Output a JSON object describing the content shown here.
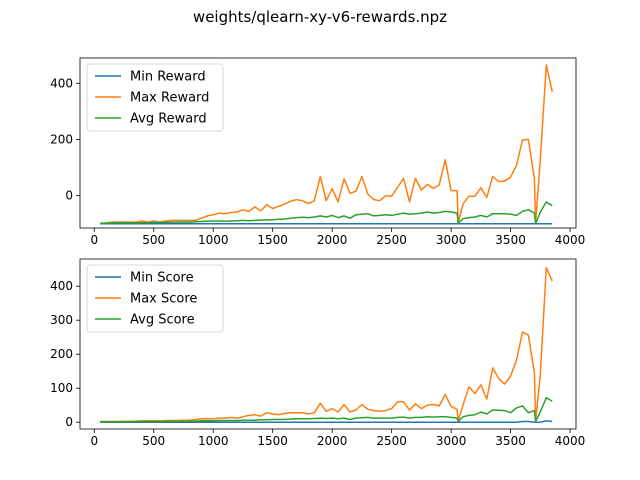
{
  "figure": {
    "suptitle": "weights/qlearn-xy-v6-rewards.npz"
  },
  "chart_data": [
    {
      "type": "line",
      "title": "",
      "xlabel": "",
      "ylabel": "",
      "xlim": [
        -120,
        4050
      ],
      "ylim": [
        -115,
        490
      ],
      "xticks": [
        0,
        500,
        1000,
        1500,
        2000,
        2500,
        3000,
        3500,
        4000
      ],
      "yticks": [
        0,
        200,
        400
      ],
      "grid": false,
      "legend": "top-left",
      "x": [
        50,
        100,
        150,
        200,
        250,
        300,
        350,
        400,
        450,
        500,
        550,
        600,
        650,
        700,
        750,
        800,
        850,
        900,
        950,
        1000,
        1050,
        1100,
        1150,
        1200,
        1250,
        1300,
        1350,
        1400,
        1450,
        1500,
        1550,
        1600,
        1650,
        1700,
        1750,
        1800,
        1850,
        1900,
        1950,
        2000,
        2050,
        2100,
        2150,
        2200,
        2250,
        2300,
        2350,
        2400,
        2450,
        2500,
        2550,
        2600,
        2650,
        2700,
        2750,
        2800,
        2850,
        2900,
        2950,
        3000,
        3050,
        3060,
        3100,
        3150,
        3200,
        3250,
        3300,
        3350,
        3400,
        3450,
        3500,
        3550,
        3600,
        3650,
        3700,
        3710,
        3750,
        3800,
        3850
      ],
      "series": [
        {
          "name": "Min Reward",
          "color": "#1f77b4",
          "values": [
            -100,
            -100,
            -100,
            -100,
            -100,
            -100,
            -100,
            -100,
            -100,
            -100,
            -100,
            -100,
            -100,
            -100,
            -100,
            -100,
            -100,
            -100,
            -100,
            -100,
            -100,
            -100,
            -100,
            -100,
            -100,
            -100,
            -100,
            -100,
            -100,
            -100,
            -100,
            -100,
            -100,
            -100,
            -100,
            -100,
            -100,
            -100,
            -100,
            -100,
            -100,
            -100,
            -100,
            -100,
            -100,
            -100,
            -100,
            -100,
            -100,
            -100,
            -100,
            -100,
            -100,
            -100,
            -100,
            -100,
            -100,
            -100,
            -100,
            -100,
            -100,
            -100,
            -100,
            -100,
            -100,
            -100,
            -100,
            -100,
            -100,
            -100,
            -100,
            -100,
            -100,
            -100,
            -100,
            -100,
            -100,
            -100,
            -100
          ]
        },
        {
          "name": "Max Reward",
          "color": "#ff7f0e",
          "values": [
            -98,
            -97,
            -94,
            -94,
            -94,
            -94,
            -94,
            -90,
            -94,
            -90,
            -94,
            -90,
            -88,
            -88,
            -88,
            -88,
            -88,
            -80,
            -72,
            -68,
            -62,
            -64,
            -60,
            -58,
            -50,
            -56,
            -40,
            -54,
            -32,
            -46,
            -38,
            -30,
            -20,
            -14,
            -18,
            -28,
            -18,
            68,
            -18,
            25,
            -22,
            60,
            8,
            16,
            68,
            6,
            -14,
            -18,
            0,
            -2,
            30,
            62,
            -22,
            62,
            20,
            40,
            26,
            38,
            128,
            18,
            18,
            -98,
            -30,
            -2,
            -2,
            28,
            -6,
            68,
            50,
            52,
            66,
            108,
            198,
            200,
            60,
            -100,
            130,
            465,
            370
          ]
        },
        {
          "name": "Avg Reward",
          "color": "#2ca02c",
          "values": [
            -98,
            -98,
            -97,
            -97,
            -97,
            -97,
            -97,
            -96,
            -96,
            -95,
            -95,
            -95,
            -94,
            -94,
            -94,
            -94,
            -93,
            -92,
            -91,
            -90,
            -90,
            -91,
            -90,
            -89,
            -88,
            -89,
            -88,
            -87,
            -86,
            -86,
            -84,
            -83,
            -80,
            -78,
            -77,
            -78,
            -76,
            -72,
            -76,
            -70,
            -78,
            -72,
            -80,
            -68,
            -66,
            -64,
            -72,
            -70,
            -68,
            -70,
            -66,
            -62,
            -66,
            -64,
            -62,
            -58,
            -62,
            -60,
            -56,
            -58,
            -62,
            -98,
            -82,
            -78,
            -76,
            -70,
            -76,
            -64,
            -64,
            -64,
            -66,
            -70,
            -56,
            -50,
            -62,
            -100,
            -58,
            -22,
            -36
          ]
        }
      ]
    },
    {
      "type": "line",
      "title": "",
      "xlabel": "",
      "ylabel": "",
      "xlim": [
        -120,
        4050
      ],
      "ylim": [
        -20,
        480
      ],
      "xticks": [
        0,
        500,
        1000,
        1500,
        2000,
        2500,
        3000,
        3500,
        4000
      ],
      "yticks": [
        0,
        100,
        200,
        300,
        400
      ],
      "grid": false,
      "legend": "top-left",
      "x": [
        50,
        100,
        150,
        200,
        250,
        300,
        350,
        400,
        450,
        500,
        550,
        600,
        650,
        700,
        750,
        800,
        850,
        900,
        950,
        1000,
        1050,
        1100,
        1150,
        1200,
        1250,
        1300,
        1350,
        1400,
        1450,
        1500,
        1550,
        1600,
        1650,
        1700,
        1750,
        1800,
        1850,
        1900,
        1950,
        2000,
        2050,
        2100,
        2150,
        2200,
        2250,
        2300,
        2350,
        2400,
        2450,
        2500,
        2550,
        2600,
        2650,
        2700,
        2750,
        2800,
        2850,
        2900,
        2950,
        3000,
        3050,
        3060,
        3100,
        3150,
        3200,
        3250,
        3300,
        3350,
        3400,
        3450,
        3500,
        3550,
        3600,
        3650,
        3700,
        3710,
        3750,
        3800,
        3850
      ],
      "series": [
        {
          "name": "Min Score",
          "color": "#1f77b4",
          "values": [
            0,
            0,
            0,
            0,
            0,
            0,
            0,
            0,
            0,
            0,
            0,
            0,
            0,
            0,
            0,
            0,
            0,
            0,
            0,
            0,
            0,
            0,
            0,
            0,
            0,
            0,
            0,
            0,
            0,
            0,
            0,
            0,
            0,
            0,
            0,
            0,
            0,
            0,
            0,
            0,
            0,
            0,
            0,
            0,
            0,
            0,
            0,
            0,
            0,
            0,
            0,
            0,
            0,
            0,
            0,
            0,
            0,
            0,
            0,
            0,
            0,
            0,
            0,
            0,
            0,
            0,
            0,
            0,
            0,
            0,
            0,
            0,
            2,
            2,
            0,
            0,
            0,
            4,
            2
          ]
        },
        {
          "name": "Max Score",
          "color": "#ff7f0e",
          "values": [
            2,
            2,
            2,
            2,
            3,
            3,
            3,
            4,
            4,
            4,
            4,
            5,
            5,
            5,
            6,
            6,
            8,
            10,
            10,
            10,
            12,
            12,
            14,
            12,
            16,
            20,
            22,
            18,
            28,
            24,
            22,
            26,
            28,
            28,
            28,
            24,
            28,
            56,
            32,
            40,
            30,
            52,
            30,
            36,
            52,
            38,
            34,
            32,
            34,
            40,
            60,
            60,
            36,
            54,
            40,
            50,
            52,
            48,
            82,
            46,
            38,
            4,
            50,
            104,
            84,
            110,
            68,
            160,
            128,
            112,
            136,
            182,
            265,
            256,
            145,
            2,
            140,
            455,
            415
          ]
        },
        {
          "name": "Avg Score",
          "color": "#2ca02c",
          "values": [
            1,
            1,
            1,
            1,
            1,
            1,
            2,
            2,
            2,
            2,
            2,
            2,
            3,
            3,
            3,
            3,
            3,
            4,
            4,
            4,
            5,
            5,
            5,
            5,
            6,
            6,
            6,
            7,
            7,
            8,
            8,
            8,
            9,
            10,
            10,
            10,
            11,
            12,
            11,
            12,
            10,
            12,
            8,
            12,
            13,
            14,
            12,
            12,
            12,
            12,
            14,
            15,
            12,
            14,
            14,
            16,
            15,
            16,
            16,
            14,
            12,
            2,
            16,
            20,
            22,
            30,
            24,
            36,
            35,
            34,
            28,
            42,
            48,
            28,
            34,
            2,
            30,
            72,
            62
          ]
        }
      ]
    }
  ]
}
